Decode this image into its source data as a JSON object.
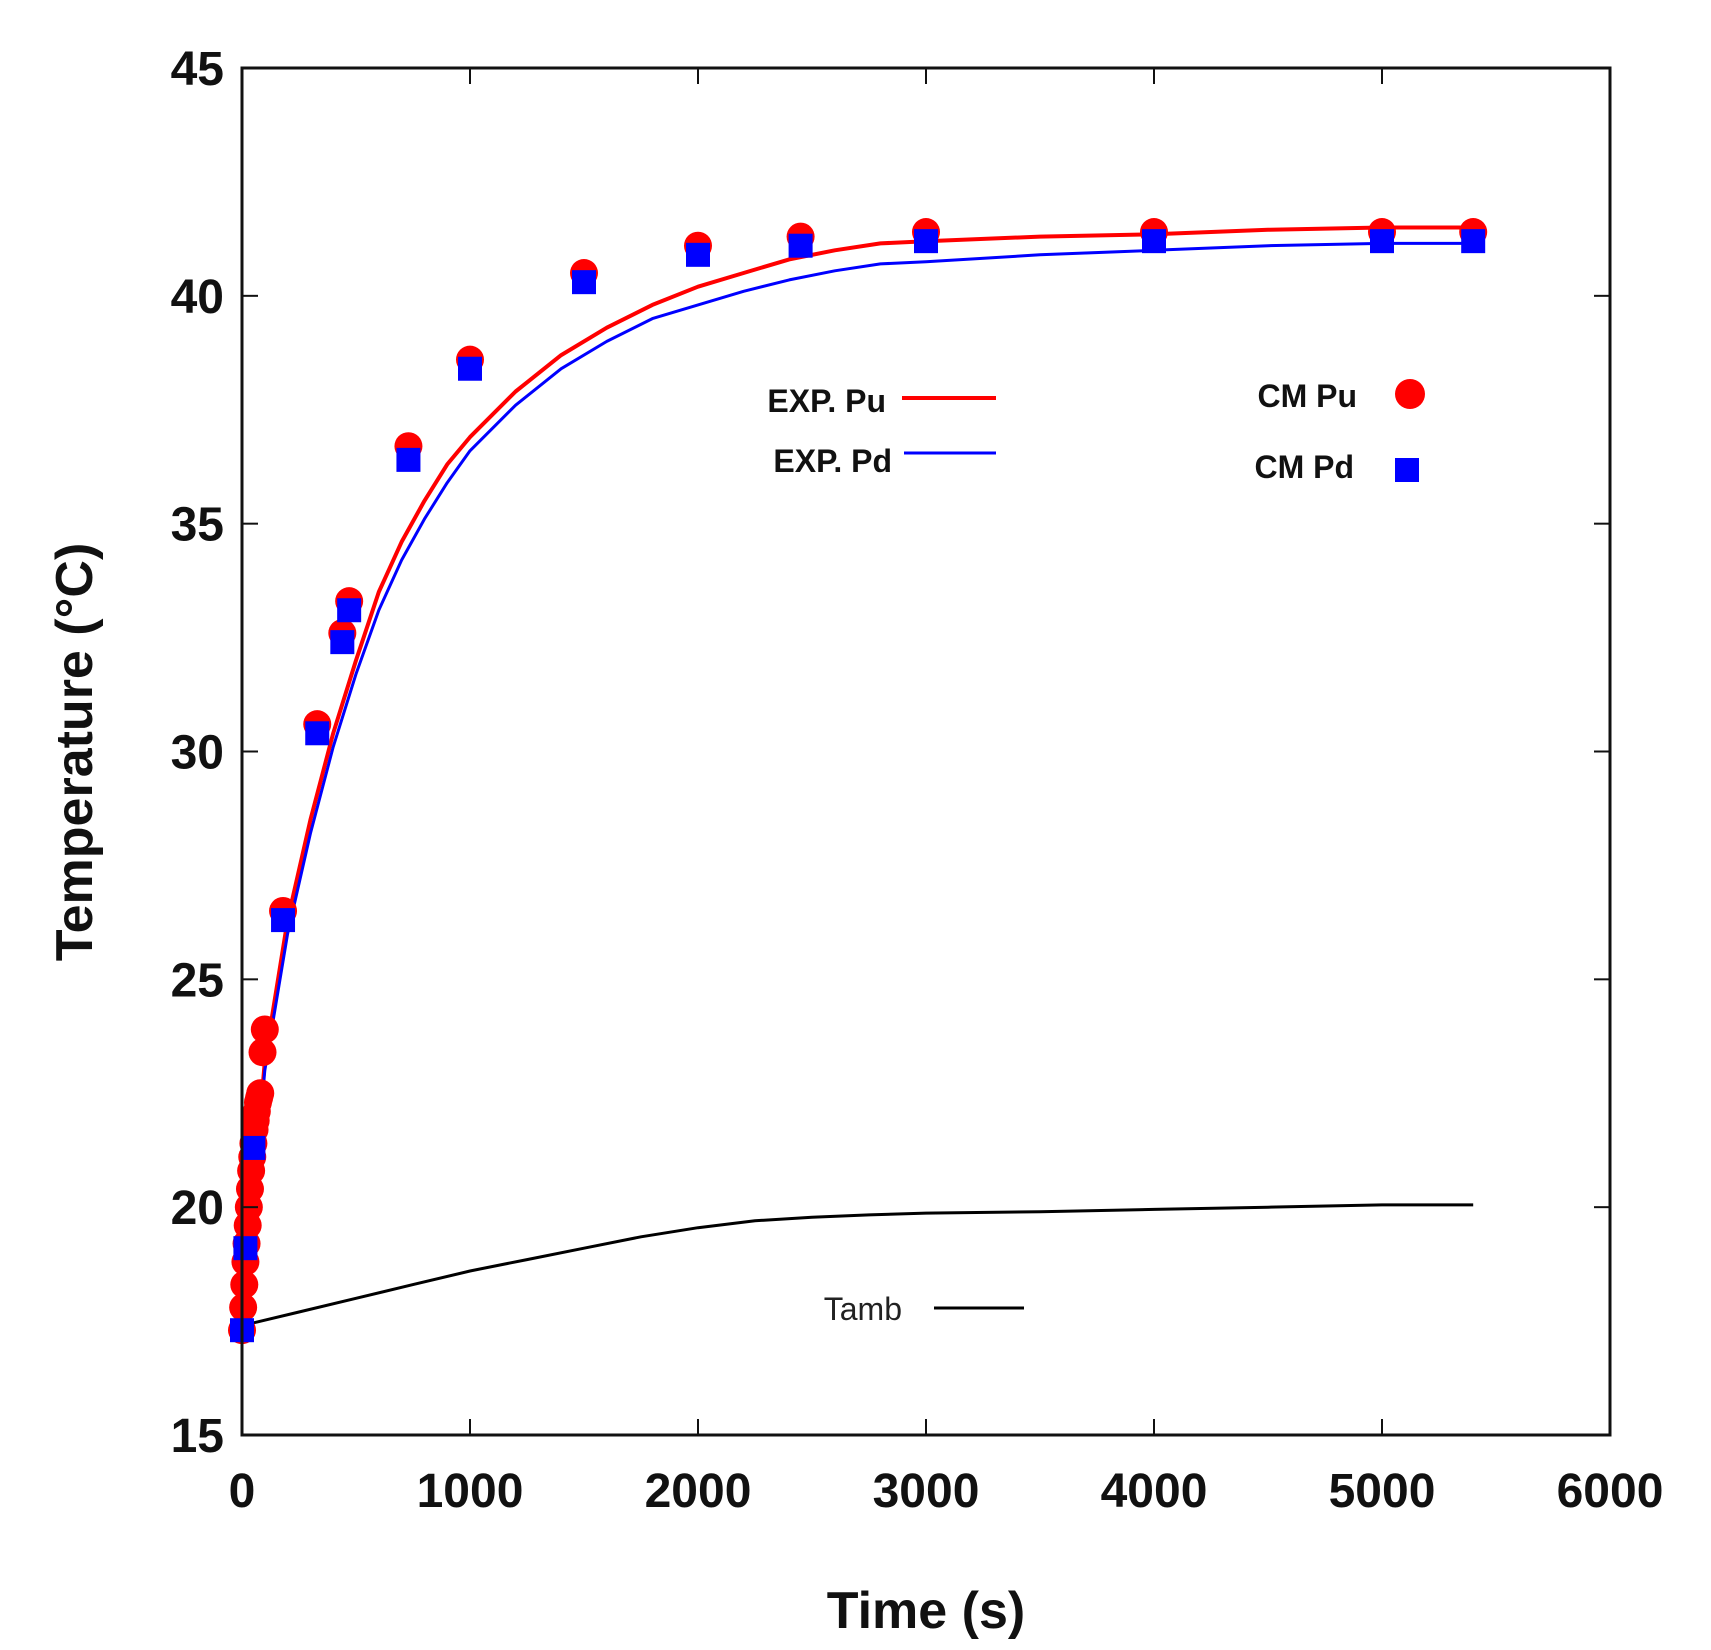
{
  "chart_data": {
    "type": "line",
    "xlabel": "Time (s)",
    "ylabel": "Temperature (°C)",
    "xlim": [
      0,
      6000
    ],
    "ylim": [
      15,
      45
    ],
    "xticks": [
      0,
      1000,
      2000,
      3000,
      4000,
      5000,
      6000
    ],
    "yticks": [
      15,
      20,
      25,
      30,
      35,
      40,
      45
    ],
    "grid": false,
    "colors": {
      "pu": "#ff0000",
      "pd": "#0000ff",
      "tamb": "#000000"
    },
    "series": [
      {
        "name": "EXP. Pu",
        "kind": "line",
        "color": "#ff0000",
        "x": [
          0,
          100,
          200,
          300,
          400,
          500,
          600,
          700,
          800,
          900,
          1000,
          1200,
          1400,
          1600,
          1800,
          2000,
          2200,
          2400,
          2600,
          2800,
          3000,
          3500,
          4000,
          4500,
          5000,
          5400
        ],
        "y": [
          17.3,
          23.2,
          26.3,
          28.5,
          30.4,
          32.0,
          33.5,
          34.6,
          35.5,
          36.3,
          36.9,
          37.9,
          38.7,
          39.3,
          39.8,
          40.2,
          40.5,
          40.8,
          41.0,
          41.15,
          41.2,
          41.3,
          41.35,
          41.45,
          41.5,
          41.5
        ]
      },
      {
        "name": "EXP. Pd",
        "kind": "line",
        "color": "#0000ff",
        "x": [
          0,
          100,
          200,
          300,
          400,
          500,
          600,
          700,
          800,
          900,
          1000,
          1200,
          1400,
          1600,
          1800,
          2000,
          2200,
          2400,
          2600,
          2800,
          3000,
          3500,
          4000,
          4500,
          5000,
          5400
        ],
        "y": [
          17.3,
          23.0,
          26.0,
          28.2,
          30.1,
          31.7,
          33.1,
          34.2,
          35.1,
          35.9,
          36.6,
          37.6,
          38.4,
          39.0,
          39.5,
          39.8,
          40.1,
          40.35,
          40.55,
          40.7,
          40.75,
          40.9,
          41.0,
          41.1,
          41.15,
          41.15
        ]
      },
      {
        "name": "Tamb",
        "kind": "line",
        "color": "#000000",
        "x": [
          0,
          250,
          500,
          750,
          1000,
          1250,
          1500,
          1750,
          2000,
          2250,
          2500,
          2750,
          3000,
          3500,
          4000,
          4500,
          5000,
          5400
        ],
        "y": [
          17.4,
          17.7,
          18.0,
          18.3,
          18.6,
          18.85,
          19.1,
          19.35,
          19.55,
          19.7,
          19.78,
          19.83,
          19.87,
          19.9,
          19.95,
          20.0,
          20.05,
          20.05
        ]
      },
      {
        "name": "CM Pu",
        "kind": "scatter",
        "marker": "circle",
        "color": "#ff0000",
        "x": [
          0,
          5,
          10,
          15,
          20,
          25,
          30,
          35,
          40,
          45,
          50,
          55,
          60,
          65,
          70,
          75,
          80,
          90,
          100,
          180,
          330,
          440,
          470,
          730,
          1000,
          1500,
          2000,
          2450,
          3000,
          4000,
          5000,
          5400
        ],
        "y": [
          17.3,
          17.8,
          18.3,
          18.8,
          19.2,
          19.6,
          20.0,
          20.4,
          20.8,
          21.1,
          21.4,
          21.7,
          21.9,
          22.1,
          22.3,
          22.4,
          22.5,
          23.4,
          23.9,
          26.5,
          30.6,
          32.6,
          33.3,
          36.7,
          38.6,
          40.5,
          41.1,
          41.3,
          41.4,
          41.4,
          41.4,
          41.4
        ]
      },
      {
        "name": "CM Pd",
        "kind": "scatter",
        "marker": "square",
        "color": "#0000ff",
        "x": [
          0,
          15,
          50,
          180,
          330,
          440,
          470,
          730,
          1000,
          1500,
          2000,
          2450,
          3000,
          4000,
          5000,
          5400
        ],
        "y": [
          17.3,
          19.1,
          21.3,
          26.3,
          30.4,
          32.4,
          33.1,
          36.4,
          38.4,
          40.3,
          40.9,
          41.1,
          41.2,
          41.2,
          41.2,
          41.2
        ]
      }
    ],
    "legend": {
      "exp_pu": "EXP. Pu",
      "exp_pd": "EXP. Pd",
      "cm_pu": "CM Pu",
      "cm_pd": "CM Pd",
      "tamb": "Tamb"
    }
  }
}
